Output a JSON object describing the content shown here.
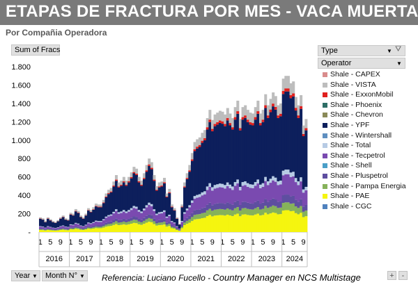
{
  "header": {
    "title": "ETAPAS DE FRACTURA POR MES -  VACA MUERTA",
    "subtitle": "Por Compañia Operadora"
  },
  "pivot": {
    "values_button": "Sum of Fracs",
    "filter_button": "Type",
    "legend_header": "Operator",
    "axis_buttons": [
      "Year",
      "Month N°"
    ],
    "expand_label": "+",
    "collapse_label": "-"
  },
  "footer": {
    "ref_prefix": "Referencia:  Luciano Fucello - ",
    "ref_role": "Country Manager en NCS Multistage"
  },
  "chart_data": {
    "type": "bar",
    "stacked": true,
    "ylim": [
      0,
      1800
    ],
    "yticks": [
      0,
      200,
      400,
      600,
      800,
      1000,
      1200,
      1400,
      1600,
      1800
    ],
    "ytick_labels": [
      "-",
      "200",
      "400",
      "600",
      "800",
      "1.000",
      "1.200",
      "1.400",
      "1.600",
      "1.800"
    ],
    "years": [
      "2016",
      "2017",
      "2018",
      "2019",
      "2020",
      "2021",
      "2022",
      "2023",
      "2024"
    ],
    "months_per_year": [
      12,
      12,
      12,
      12,
      12,
      12,
      12,
      12,
      10
    ],
    "month_tick_labels": [
      "1",
      "5",
      "9"
    ],
    "legend": [
      {
        "name": "Shale - CAPEX",
        "color": "#d98c8c"
      },
      {
        "name": "Shale - VISTA",
        "color": "#bdbdbd"
      },
      {
        "name": "Shale - ExxonMobil",
        "color": "#e0201e"
      },
      {
        "name": "Shale - Phoenix",
        "color": "#2e6e66"
      },
      {
        "name": "Shale - Chevron",
        "color": "#8a8a58"
      },
      {
        "name": "Shale - YPF",
        "color": "#0d1f5c"
      },
      {
        "name": "Shale - Wintershall",
        "color": "#5f8fc0"
      },
      {
        "name": "Shale - Total",
        "color": "#b7cbe4"
      },
      {
        "name": "Shale - Tecpetrol",
        "color": "#7a4ab0"
      },
      {
        "name": "Shale - Shell",
        "color": "#4a9fc8"
      },
      {
        "name": "Shale - Pluspetrol",
        "color": "#5e4ea0"
      },
      {
        "name": "Shale - Pampa Energia",
        "color": "#86b25a"
      },
      {
        "name": "Shale - PAE",
        "color": "#f5f50f"
      },
      {
        "name": "Shale - CGC",
        "color": "#4f81bd"
      }
    ],
    "totals": [
      160,
      150,
      120,
      160,
      140,
      120,
      110,
      130,
      160,
      180,
      150,
      140,
      210,
      200,
      250,
      230,
      180,
      160,
      200,
      260,
      240,
      270,
      310,
      300,
      300,
      350,
      420,
      460,
      480,
      550,
      620,
      540,
      560,
      600,
      560,
      600,
      650,
      710,
      690,
      600,
      560,
      640,
      730,
      800,
      760,
      620,
      500,
      540,
      550,
      590,
      420,
      470,
      300,
      260,
      160,
      90,
      300,
      540,
      640,
      730,
      860,
      980,
      1010,
      1030,
      1080,
      1110,
      1240,
      1330,
      1220,
      1280,
      1300,
      1320,
      1310,
      1280,
      1350,
      1290,
      1240,
      1360,
      1430,
      1230,
      1360,
      1380,
      1330,
      1300,
      1290,
      1360,
      1430,
      1290,
      1330,
      1500,
      1380,
      1450,
      1520,
      1480,
      1380,
      1400,
      1670,
      1700,
      1700,
      1620,
      1640,
      1470,
      1380,
      1490,
      1160,
      1230
    ],
    "shares": [
      {
        "series": "Shale - PAE",
        "share": 0.14
      },
      {
        "series": "Shale - Pampa Energia",
        "share": 0.05
      },
      {
        "series": "Shale - Pluspetrol",
        "share": 0.05
      },
      {
        "series": "Shale - Tecpetrol",
        "share": 0.13
      },
      {
        "series": "Shale - Total",
        "share": 0.03
      },
      {
        "series": "Shale - YPF",
        "share": 0.5
      },
      {
        "series": "Shale - ExxonMobil",
        "share": 0.02
      },
      {
        "series": "Shale - VISTA",
        "share": 0.08
      }
    ]
  }
}
